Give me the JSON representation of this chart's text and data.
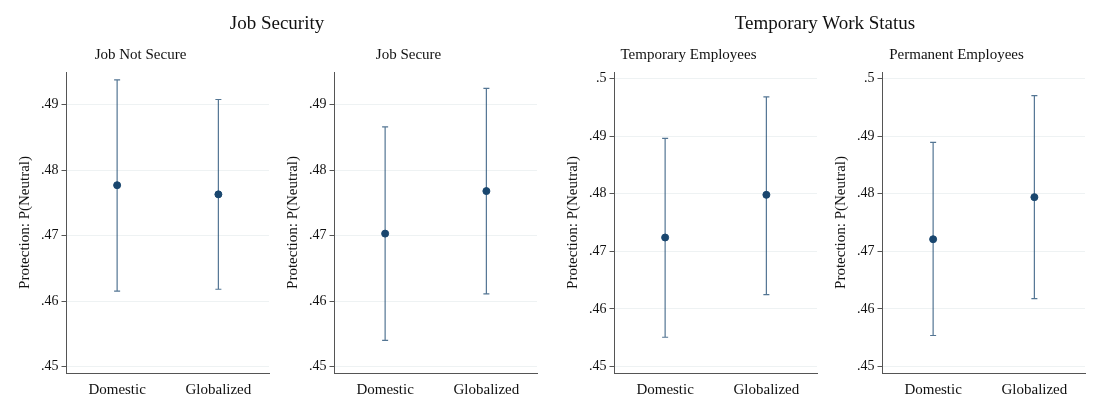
{
  "chart_data": [
    {
      "type": "scatter",
      "title": "Job Security",
      "subtitle": "Job Not Secure",
      "ylabel": "Protection: P(Neutral)",
      "categories": [
        "Domestic",
        "Globalized"
      ],
      "series": [
        {
          "color": "#1a476f",
          "values": [
            0.4777,
            0.4763
          ],
          "errors": [
            [
              0.4615,
              0.4938
            ],
            [
              0.4618,
              0.4908
            ]
          ]
        }
      ],
      "ylim": [
        0.449,
        0.495
      ],
      "yticks": [
        {
          "value": 0.45,
          "label": ".45"
        },
        {
          "value": 0.46,
          "label": ".46"
        },
        {
          "value": 0.47,
          "label": ".47"
        },
        {
          "value": 0.48,
          "label": ".48"
        },
        {
          "value": 0.49,
          "label": ".49"
        }
      ],
      "grid": "y",
      "marker": "circle"
    },
    {
      "type": "scatter",
      "subtitle": "Job Secure",
      "ylabel": "Protection: P(Neutral)",
      "categories": [
        "Domestic",
        "Globalized"
      ],
      "series": [
        {
          "color": "#1a476f",
          "values": [
            0.4703,
            0.4768
          ],
          "errors": [
            [
              0.454,
              0.4866
            ],
            [
              0.4611,
              0.4925
            ]
          ]
        }
      ],
      "ylim": [
        0.449,
        0.495
      ],
      "yticks": [
        {
          "value": 0.45,
          "label": ".45"
        },
        {
          "value": 0.46,
          "label": ".46"
        },
        {
          "value": 0.47,
          "label": ".47"
        },
        {
          "value": 0.48,
          "label": ".48"
        },
        {
          "value": 0.49,
          "label": ".49"
        }
      ],
      "grid": "y",
      "marker": "circle"
    },
    {
      "type": "scatter",
      "title": "Temporary Work Status",
      "subtitle": "Temporary Employees",
      "ylabel": "Protection: P(Neutral)",
      "categories": [
        "Domestic",
        "Globalized"
      ],
      "series": [
        {
          "color": "#1a476f",
          "values": [
            0.4724,
            0.4798
          ],
          "errors": [
            [
              0.4551,
              0.4896
            ],
            [
              0.4625,
              0.4968
            ]
          ]
        }
      ],
      "ylim": [
        0.4489,
        0.5011
      ],
      "yticks": [
        {
          "value": 0.45,
          "label": ".45"
        },
        {
          "value": 0.46,
          "label": ".46"
        },
        {
          "value": 0.47,
          "label": ".47"
        },
        {
          "value": 0.48,
          "label": ".48"
        },
        {
          "value": 0.49,
          "label": ".49"
        },
        {
          "value": 0.5,
          "label": ".5"
        }
      ],
      "grid": "y",
      "marker": "circle"
    },
    {
      "type": "scatter",
      "subtitle": "Permanent Employees",
      "ylabel": "Protection: P(Neutral)",
      "categories": [
        "Domestic",
        "Globalized"
      ],
      "series": [
        {
          "color": "#1a476f",
          "values": [
            0.4721,
            0.4794
          ],
          "errors": [
            [
              0.4554,
              0.4889
            ],
            [
              0.4618,
              0.497
            ]
          ]
        }
      ],
      "ylim": [
        0.4489,
        0.5011
      ],
      "yticks": [
        {
          "value": 0.45,
          "label": ".45"
        },
        {
          "value": 0.46,
          "label": ".46"
        },
        {
          "value": 0.47,
          "label": ".47"
        },
        {
          "value": 0.48,
          "label": ".48"
        },
        {
          "value": 0.49,
          "label": ".49"
        },
        {
          "value": 0.5,
          "label": ".5"
        }
      ],
      "grid": "y",
      "marker": "circle"
    }
  ]
}
